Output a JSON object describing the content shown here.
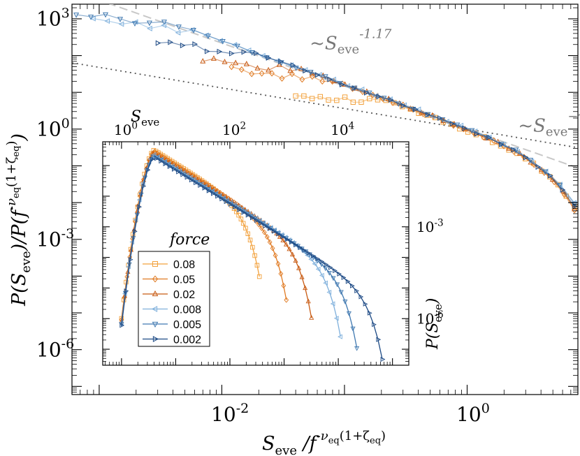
{
  "colors": {
    "c008": "#f2a13c",
    "c005": "#e07a22",
    "c002": "#c85a12",
    "c0008": "#7fb0dc",
    "c0005": "#3f78b0",
    "c0002": "#1d4a85",
    "ann": "#777777",
    "guide": "#bbbbbb"
  },
  "chart_data": [
    {
      "id": "main",
      "type": "scatter",
      "xscale": "log",
      "yscale": "log",
      "xlim": [
        0.0006,
        8
      ],
      "ylim": [
        6e-08,
        2500
      ],
      "xticks": [
        {
          "v": 0.01,
          "base": "10",
          "exp": "-2"
        },
        {
          "v": 1,
          "base": "10",
          "exp": "0"
        }
      ],
      "yticks": [
        {
          "v": 1e-06,
          "base": "10",
          "exp": "-6"
        },
        {
          "v": 0.001,
          "base": "10",
          "exp": "-3"
        },
        {
          "v": 1,
          "base": "10",
          "exp": "0"
        },
        {
          "v": 1000,
          "base": "10",
          "exp": "3"
        }
      ],
      "xlabel": {
        "main": "S",
        "sub": "eve",
        "mid": " /f",
        "sup1": "-ν",
        "sup1sub": "eq",
        "sup2": "(1+ζ",
        "sup2sub": "eq",
        "sup3": ")"
      },
      "ylabel": {
        "a": "P(S",
        "asub": "eve",
        "b": ")/P(f",
        "sup1": "-ν",
        "sup1sub": "eq",
        "sup2": "(1+ζ",
        "sup2sub": "eq",
        "sup3": ")",
        "c": ")"
      },
      "guides": [
        {
          "name": "slope-1.17",
          "style": "dashed",
          "exponent": -1.17,
          "x0": 0.0006,
          "x1": 8,
          "anchor_x": 1,
          "anchor_y": 1,
          "label": "~S",
          "label_sub": "eve",
          "label_sup": "-1.17",
          "label_at": [
            0.052,
            150
          ]
        },
        {
          "name": "slope-tau",
          "style": "dotted",
          "exponent": -0.56,
          "x0": 0.0006,
          "x1": 8,
          "anchor_x": 1,
          "anchor_y": 1,
          "label": "~S",
          "label_sub": "eve",
          "label_sup": "−τ",
          "label_sup_sub": "eq",
          "label_at": [
            2.6,
            0.85
          ]
        }
      ],
      "series": [
        {
          "name": "0.08",
          "marker": "square",
          "color": "c008",
          "ln_fc": 4.2,
          "scale": 0.9,
          "xmin": 0.04
        },
        {
          "name": "0.05",
          "marker": "diamond",
          "color": "c005",
          "ln_fc": 4.0,
          "scale": 0.95,
          "xmin": 0.012
        },
        {
          "name": "0.02",
          "marker": "triangle-up",
          "color": "c002",
          "ln_fc": 4.0,
          "scale": 1.0,
          "xmin": 0.007
        },
        {
          "name": "0.008",
          "marker": "triangle-left",
          "color": "c0008",
          "ln_fc": 4.3,
          "scale": 1.05,
          "xmin": 0.0009
        },
        {
          "name": "0.005",
          "marker": "triangle-down",
          "color": "c0005",
          "ln_fc": 4.2,
          "scale": 1.05,
          "xmin": 0.00065
        },
        {
          "name": "0.002",
          "marker": "triangle-right",
          "color": "c0002",
          "ln_fc": 4.1,
          "scale": 1.0,
          "xmin": 0.003
        }
      ]
    },
    {
      "id": "inset",
      "type": "line",
      "xscale": "log",
      "yscale": "log",
      "xlim": [
        0.45,
        200000
      ],
      "ylim": [
        3e-08,
        0.6
      ],
      "xlabel": {
        "main": "S",
        "sub": "eve"
      },
      "ylabel": {
        "a": "P(S",
        "asub": "eve",
        "b": ")"
      },
      "xticks": [
        {
          "v": 1,
          "base": "10",
          "exp": "0"
        },
        {
          "v": 100,
          "base": "10",
          "exp": "2"
        },
        {
          "v": 10000,
          "base": "10",
          "exp": "4"
        }
      ],
      "yticks": [
        {
          "v": 0.001,
          "base": "10",
          "exp": "-3"
        },
        {
          "v": 1e-06,
          "base": "10",
          "exp": "-6"
        }
      ],
      "legend": {
        "title": "force",
        "position": "lower-left"
      },
      "series": [
        {
          "name": "0.08",
          "marker": "square",
          "color": "c008",
          "peak": 0.32,
          "cutoff": 150,
          "xmax": 350
        },
        {
          "name": "0.05",
          "marker": "diamond",
          "color": "c005",
          "peak": 0.29,
          "cutoff": 450,
          "xmax": 1100
        },
        {
          "name": "0.02",
          "marker": "triangle-up",
          "color": "c002",
          "peak": 0.26,
          "cutoff": 1300,
          "xmax": 3200
        },
        {
          "name": "0.008",
          "marker": "triangle-left",
          "color": "c0008",
          "peak": 0.23,
          "cutoff": 4500,
          "xmax": 11000
        },
        {
          "name": "0.005",
          "marker": "triangle-down",
          "color": "c0005",
          "peak": 0.21,
          "cutoff": 9000,
          "xmax": 22000
        },
        {
          "name": "0.002",
          "marker": "triangle-right",
          "color": "c0002",
          "peak": 0.19,
          "cutoff": 28000,
          "xmax": 65000
        }
      ]
    }
  ]
}
